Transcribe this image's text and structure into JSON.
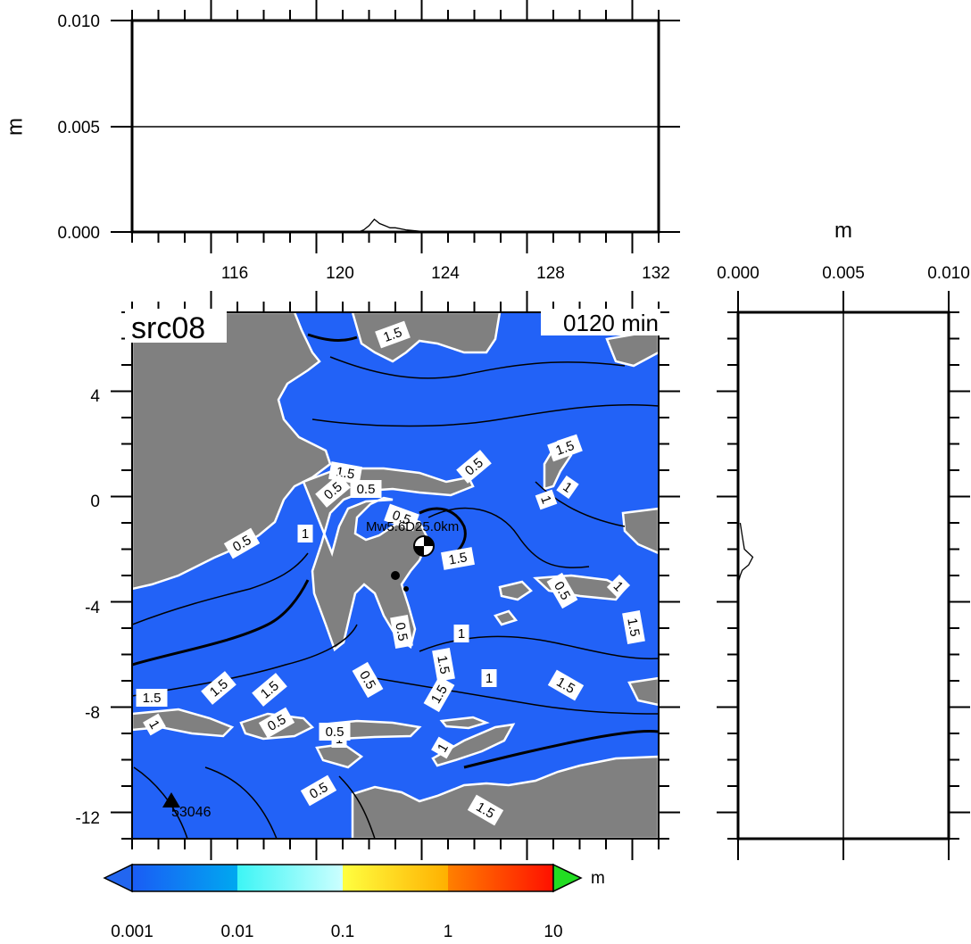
{
  "top_panel": {
    "ylabel": "m",
    "y_ticks": [
      "0.010",
      "0.005",
      "0.000"
    ],
    "x_ticks": [
      "116",
      "120",
      "124",
      "128",
      "132"
    ]
  },
  "side_panel": {
    "xlabel": "m",
    "x_ticks": [
      "0.000",
      "0.005",
      "0.010"
    ]
  },
  "map": {
    "title": "src08",
    "time": "0120 min",
    "lat_ticks": [
      "4",
      "0",
      "-4",
      "-8",
      "-12"
    ],
    "event_label": "Mw5.6D25.0km",
    "station_label": "53046",
    "contour_labels": [
      "1.5",
      "1.5",
      "1.5",
      "0.5",
      "1",
      "1.5",
      "0.5",
      "0.5",
      "1",
      "0.5",
      "0.5",
      "1",
      "1.5",
      "0.5",
      "1.5",
      "1",
      "1.5",
      "0.5",
      "1.5",
      "1.5",
      "1",
      "1.5",
      "1.5",
      "1",
      "1",
      "0.5",
      "1",
      "0.5",
      "1.5",
      "1",
      "0.5",
      "0.5"
    ],
    "colors": {
      "ocean": "#2262F7",
      "land": "#808080",
      "coast": "#ffffff",
      "contour": "#000000"
    }
  },
  "colorbar": {
    "unit": "m",
    "ticks": [
      "0.001",
      "0.01",
      "0.1",
      "1",
      "10"
    ],
    "colors": [
      "#1A5CF5",
      "#00A8F0",
      "#3DF5F5",
      "#CCFFFF",
      "#FFFF40",
      "#FF9900",
      "#FF2200",
      "#22DD22",
      "#2266F0"
    ]
  },
  "chart_data": [
    {
      "type": "line",
      "ylabel": "m",
      "ylim": [
        0,
        0.01
      ],
      "xlim": [
        113,
        133
      ],
      "x": [
        121.6,
        121.8,
        122.0,
        122.2,
        122.4,
        122.6,
        122.8,
        123.0,
        123.4,
        123.8,
        124.2
      ],
      "y": [
        0,
        0.0001,
        0.0003,
        0.0006,
        0.0004,
        0.0003,
        0.0002,
        0.0002,
        0.0001,
        5e-05,
        0
      ]
    },
    {
      "type": "line",
      "xlabel": "m",
      "xlim": [
        0,
        0.01
      ],
      "ylim": [
        -13,
        7
      ],
      "y": [
        -1.0,
        -1.5,
        -2.0,
        -2.3,
        -2.6,
        -2.8,
        -3.0,
        -3.3
      ],
      "x": [
        0.0001,
        0.0002,
        0.0003,
        0.0007,
        0.0005,
        0.0002,
        0.0001,
        0
      ]
    }
  ]
}
